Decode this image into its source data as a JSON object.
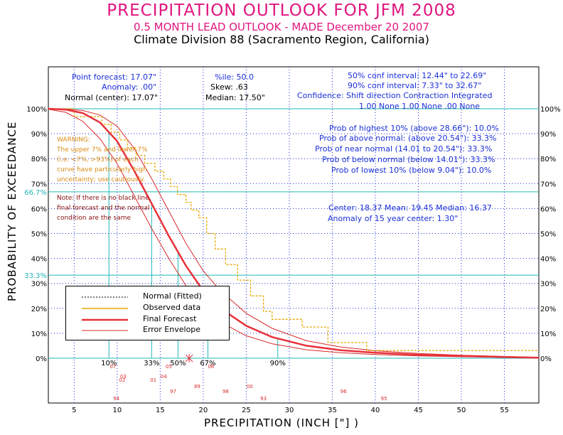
{
  "title": "PRECIPITATION OUTLOOK FOR JFM 2008",
  "subtitle": "0.5 MONTH LEAD OUTLOOK   - MADE December 20 2007",
  "division": "Climate Division 88 (Sacramento Region, California)",
  "stats": {
    "point_forecast": "Point forecast: 17.07\"",
    "anomaly": "Anomaly:   .00\"",
    "normal_center": "Normal (center): 17.07\"",
    "percentile": "%ile:  50.0",
    "skew": "Skew:     .63",
    "median": "Median: 17.50\"",
    "conf50": "50% conf interval: 12.44\" to 22.69\"",
    "conf90": "90% conf interval: 7.33\" to 32.67\"",
    "confidence_header": "Confidence: Shift direction   Contraction   Integrated",
    "confidence_values": "1.00 None       1.00 None      .00 None"
  },
  "probabilities": {
    "highest": "Prob of highest 10% (above 28.66\"): 10.0%",
    "above": "Prob of above normal: (above 20.54\"): 33.3%",
    "near": "Prob of near normal (14.01 to 20.54\"): 33.3%",
    "below": "Prob of below normal (below 14.01\"): 33.3%",
    "lowest": "Prob of lowest 10% (below 9.04\"): 10.0%"
  },
  "center_info": {
    "line1": "Center: 18.37  Mean: 19.45  Median: 16.37",
    "line2": "Anomaly of 15 year center: 1.30\""
  },
  "warning": {
    "l1": "WARNING:",
    "l2": "The upper 7% and lower 7%",
    "l3": "(i.e. <7%, >93%) of each",
    "l4": "curve have particularly high",
    "l5": "uncertainty; use cautiously."
  },
  "note": {
    "l1": "Note: If there is no black line,",
    "l2": "final forecast and the normal",
    "l3": "condition are the same"
  },
  "legend": {
    "normal": "Normal (Fitted)",
    "observed": "Observed data",
    "final": "Final Forecast",
    "envelope": "Error Envelope"
  },
  "colors": {
    "title": "#e0157f",
    "stats": "#1a2fd6",
    "grid": "#22b7b7",
    "observed": "#e8a800",
    "forecast": "#e8313a",
    "envelope": "#d92a2a",
    "warning": "#d98a12",
    "note": "#8a1010"
  },
  "chart_data": {
    "type": "line",
    "title": "PRECIPITATION OUTLOOK FOR JFM 2008",
    "xlabel": "PRECIPITATION (INCH [\"] )",
    "ylabel": "PROBABILITY OF EXCEEDANCE",
    "xlim": [
      2,
      59
    ],
    "ylim": [
      0,
      100
    ],
    "x_ticks": [
      5,
      10,
      15,
      20,
      25,
      30,
      35,
      40,
      45,
      50,
      55
    ],
    "y_ticks_left": [
      "0%",
      "10%",
      "20%",
      "30%",
      "40%",
      "50%",
      "60%",
      "70%",
      "80%",
      "90%",
      "100%"
    ],
    "y_ticks_right": [
      "0%",
      "10%",
      "20%",
      "30%",
      "40%",
      "50%",
      "60%",
      "70%",
      "80%",
      "90%",
      "100%"
    ],
    "tercile_labels": [
      "33.3%",
      "66.7%"
    ],
    "tercile_values": [
      33.3,
      66.7
    ],
    "percentile_markers": [
      {
        "label": "10%",
        "x": 9.04
      },
      {
        "label": "33%",
        "x": 14.01
      },
      {
        "label": "50%",
        "x": 17.07
      },
      {
        "label": "67%",
        "x": 20.54
      },
      {
        "label": "90%",
        "x": 28.66
      }
    ],
    "point_forecast_x": 18.37,
    "series": [
      {
        "name": "Final Forecast",
        "x": [
          2,
          4,
          6,
          8,
          10,
          12,
          14,
          16,
          18,
          20,
          22,
          25,
          28,
          32,
          36,
          40,
          45,
          50,
          55,
          59
        ],
        "y": [
          100,
          99.7,
          98.3,
          94.5,
          87,
          75,
          62,
          49,
          37,
          27,
          20,
          13,
          8.5,
          5,
          3.2,
          2.2,
          1.4,
          0.9,
          0.5,
          0.2
        ]
      },
      {
        "name": "Error Envelope (upper)",
        "x": [
          2,
          4,
          6,
          8,
          10,
          12,
          14,
          16,
          18,
          20,
          22,
          25,
          28,
          32,
          36,
          40,
          45,
          50,
          55,
          59
        ],
        "y": [
          100,
          99.9,
          99.3,
          97.5,
          93,
          84,
          72,
          59,
          46,
          35,
          27,
          18,
          12,
          7,
          4.5,
          3,
          1.9,
          1.2,
          0.7,
          0.3
        ]
      },
      {
        "name": "Error Envelope (lower)",
        "x": [
          2,
          4,
          6,
          8,
          10,
          12,
          14,
          16,
          18,
          20,
          22,
          25,
          28,
          32,
          36,
          40,
          45,
          50,
          55,
          59
        ],
        "y": [
          99.8,
          98.6,
          95,
          88,
          78,
          65,
          52,
          40,
          29,
          20.5,
          14.5,
          9,
          5.8,
          3.4,
          2.2,
          1.5,
          0.9,
          0.6,
          0.3,
          0.1
        ]
      },
      {
        "name": "Observed data",
        "x": [
          2,
          5,
          5,
          8.2,
          8.2,
          9.3,
          9.3,
          10.3,
          10.3,
          11.2,
          11.2,
          12.2,
          12.2,
          13.2,
          13.2,
          14.4,
          14.4,
          15.4,
          15.4,
          16.2,
          16.2,
          17,
          17,
          18,
          18,
          18.6,
          18.6,
          19.5,
          19.5,
          20.4,
          20.4,
          21.4,
          21.4,
          22.6,
          22.6,
          24,
          24,
          25.5,
          25.5,
          27,
          27,
          28,
          28,
          31.5,
          31.5,
          34.5,
          34.5,
          39,
          39,
          59
        ],
        "y": [
          100,
          100,
          96.9,
          96.9,
          93.8,
          93.8,
          90.6,
          90.6,
          87.5,
          87.5,
          84.4,
          84.4,
          81.3,
          81.3,
          78.1,
          78.1,
          75,
          75,
          71.9,
          71.9,
          68.8,
          68.8,
          65.6,
          65.6,
          62.5,
          62.5,
          59.4,
          59.4,
          56.3,
          56.3,
          50,
          50,
          43.8,
          43.8,
          37.5,
          37.5,
          31.3,
          31.3,
          25,
          25,
          18.8,
          18.8,
          15.6,
          15.6,
          12.5,
          12.5,
          6.3,
          6.3,
          3.1,
          3.1
        ]
      }
    ],
    "years": [
      {
        "label": "07",
        "x": 9.5,
        "row": 0
      },
      {
        "label": "03",
        "x": 10.7,
        "row": 1
      },
      {
        "label": "02",
        "x": 10.6,
        "row": 2
      },
      {
        "label": "01",
        "x": 14.2,
        "row": 2
      },
      {
        "label": "04",
        "x": 15.4,
        "row": 1
      },
      {
        "label": "05",
        "x": 16,
        "row": 0
      },
      {
        "label": "97",
        "x": 16.5,
        "row": 4
      },
      {
        "label": "89",
        "x": 19.3,
        "row": 3
      },
      {
        "label": "06",
        "x": 20.9,
        "row": 0
      },
      {
        "label": "98",
        "x": 22.6,
        "row": 4
      },
      {
        "label": "00",
        "x": 25.4,
        "row": 3
      },
      {
        "label": "93",
        "x": 27,
        "row": 5
      },
      {
        "label": "96",
        "x": 36.3,
        "row": 4
      },
      {
        "label": "95",
        "x": 41,
        "row": 5
      },
      {
        "label": "94",
        "x": 9.9,
        "row": 5
      }
    ]
  }
}
